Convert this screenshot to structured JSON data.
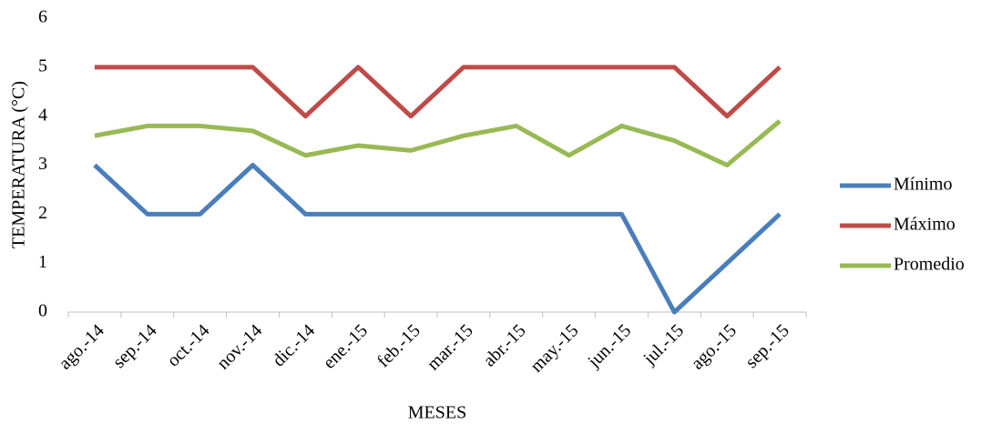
{
  "chart_data": {
    "type": "line",
    "x_label": "MESES",
    "y_label": "TEMPERATURA (°C)",
    "categories": [
      "ago.-14",
      "sep.-14",
      "oct.-14",
      "nov.-14",
      "dic.-14",
      "ene.-15",
      "feb.-15",
      "mar.-15",
      "abr.-15",
      "may.-15",
      "jun.-15",
      "jul.-15",
      "ago.-15",
      "sep.-15"
    ],
    "series": [
      {
        "name": "Mínimo",
        "color": "#4a7ebb",
        "values": [
          3,
          2,
          2,
          3,
          2,
          2,
          2,
          2,
          2,
          2,
          2,
          0,
          1,
          2
        ]
      },
      {
        "name": "Máximo",
        "color": "#be4b48",
        "values": [
          5,
          5,
          5,
          5,
          4,
          5,
          4,
          5,
          5,
          5,
          5,
          5,
          4,
          5
        ]
      },
      {
        "name": "Promedio",
        "color": "#98b954",
        "values": [
          3.6,
          3.8,
          3.8,
          3.7,
          3.2,
          3.4,
          3.3,
          3.6,
          3.8,
          3.2,
          3.8,
          3.5,
          3.0,
          3.9
        ]
      }
    ],
    "ylim": [
      0,
      6
    ],
    "yticks": [
      0,
      1,
      2,
      3,
      4,
      5,
      6
    ],
    "grid": false,
    "legend": "right"
  }
}
